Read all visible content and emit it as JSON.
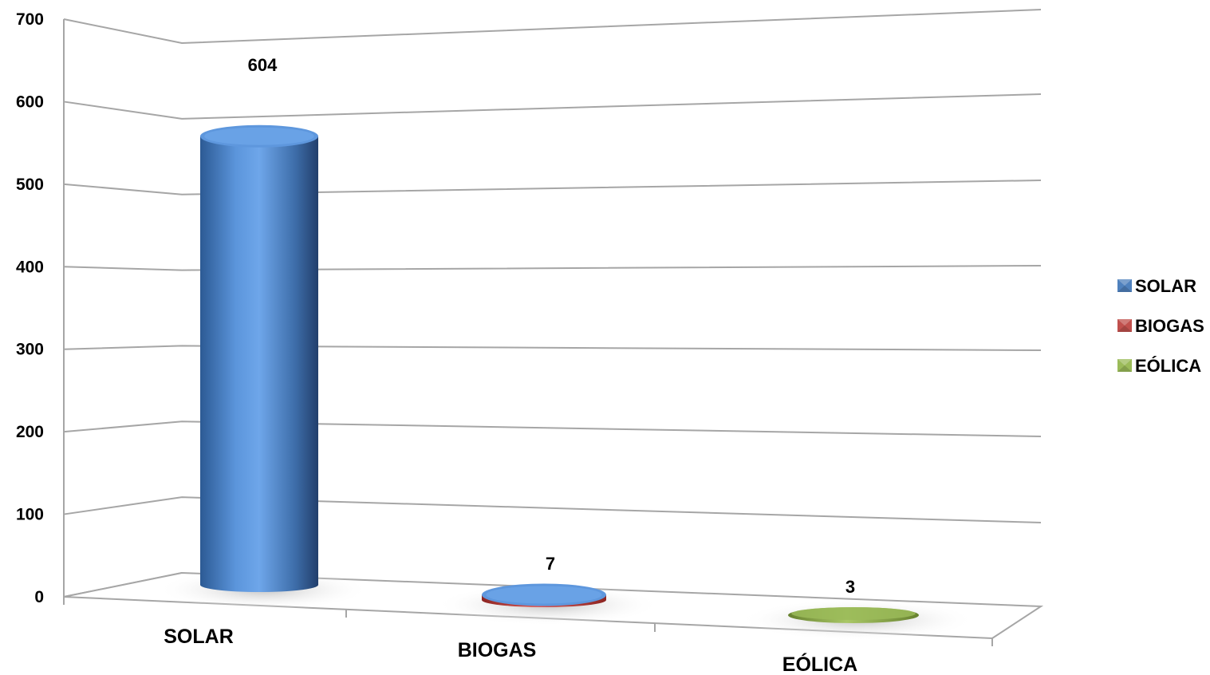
{
  "chart_data": {
    "type": "bar",
    "style": "3d-cylinder",
    "categories": [
      "SOLAR",
      "BIOGAS",
      "EÓLICA"
    ],
    "values": [
      604,
      7,
      3
    ],
    "data_labels": [
      "604",
      "7",
      "3"
    ],
    "title": "",
    "xlabel": "",
    "ylabel": "",
    "ylim": [
      0,
      700
    ],
    "yticks": [
      0,
      100,
      200,
      300,
      400,
      500,
      600,
      700
    ],
    "grid": true,
    "legend": {
      "placement": "right",
      "entries": [
        "SOLAR",
        "BIOGAS",
        "EÓLICA"
      ]
    },
    "colors": [
      "#4f81bd",
      "#c0504d",
      "#9bbb59"
    ]
  }
}
